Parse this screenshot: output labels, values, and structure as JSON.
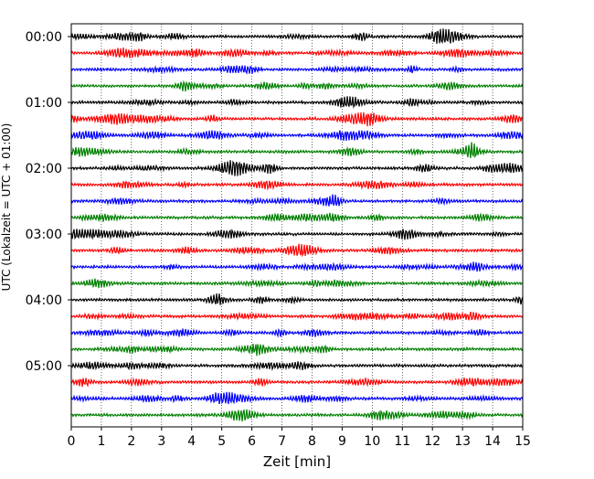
{
  "chart_data": {
    "type": "line",
    "title": "",
    "xlabel": "Zeit  [min]",
    "ylabel": "UTC (Lokalzeit = UTC + 01:00)",
    "xlim": [
      0,
      15
    ],
    "x_ticks": [
      0,
      1,
      2,
      3,
      4,
      5,
      6,
      7,
      8,
      9,
      10,
      11,
      12,
      13,
      14,
      15
    ],
    "x_tick_labels": [
      "0",
      "1",
      "2",
      "3",
      "4",
      "5",
      "6",
      "7",
      "8",
      "9",
      "10",
      "11",
      "12",
      "13",
      "14",
      "15"
    ],
    "y_tick_labels": [
      "00:00",
      "01:00",
      "02:00",
      "03:00",
      "04:00",
      "05:00"
    ],
    "y_tick_rows": [
      0,
      4,
      8,
      12,
      16,
      20
    ],
    "rows_per_hour": 4,
    "row_count": 24,
    "row_colors": [
      "#000000",
      "#ff0000",
      "#0000ff",
      "#008000"
    ],
    "vertical_grid": "dotted at each minute",
    "legend": "none",
    "series": [
      {
        "values": []
      }
    ]
  }
}
